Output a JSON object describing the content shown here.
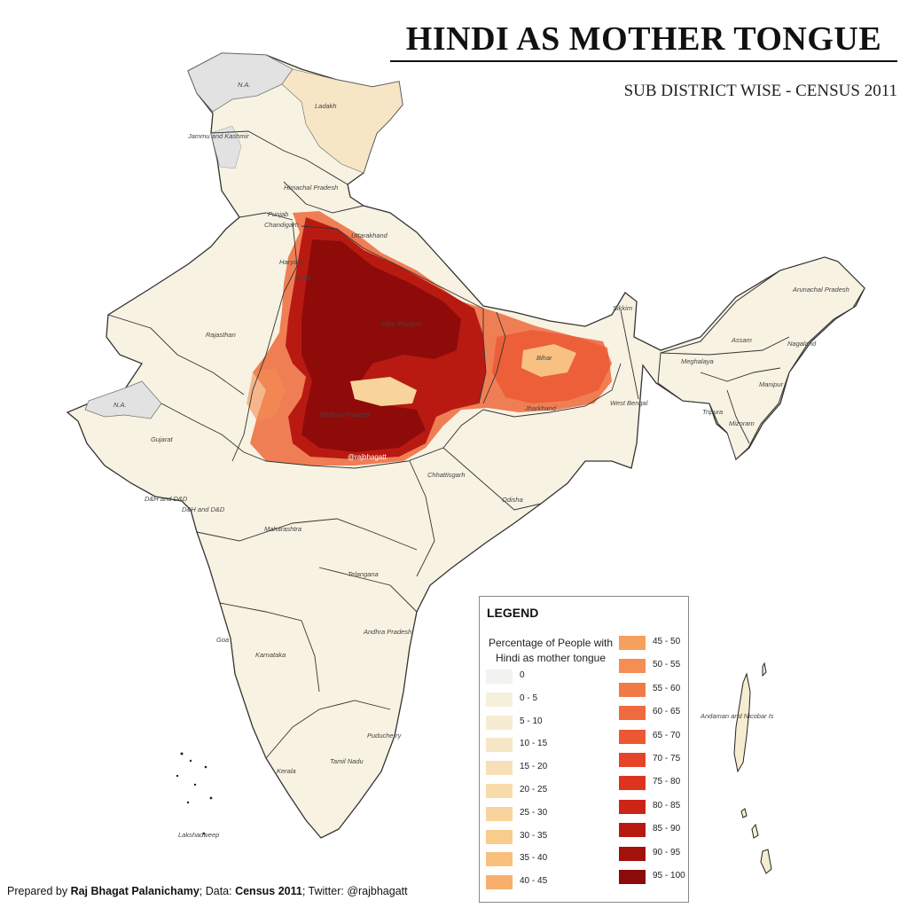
{
  "title": "HINDI AS MOTHER TONGUE",
  "subtitle": "SUB DISTRICT WISE - CENSUS 2011",
  "watermark": "@rajbhagatt",
  "colors": {
    "background": "#ffffff",
    "base_fill": "#f8f2e2",
    "border": "#333333",
    "na_fill": "#e2e2e2",
    "high": "#8b0a0a"
  },
  "map_labels": {
    "na_north": "N.A.",
    "na_west": "N.A.",
    "ladakh": "Ladakh",
    "jammu_kashmir": "Jammu and Kashmir",
    "himachal": "Himachal Pradesh",
    "punjab": "Punjab",
    "chandigarh": "Chandigarh",
    "uttarakhand": "Uttarakhand",
    "haryana": "Haryana",
    "delhi": "Delhi",
    "rajasthan": "Rajasthan",
    "uttar_pradesh": "Uttar Pradesh",
    "madhya_pradesh": "Madhya Pradesh",
    "bihar": "Bihar",
    "sikkim": "Sikkim",
    "arunachal": "Arunachal Pradesh",
    "assam": "Assam",
    "nagaland": "Nagaland",
    "meghalaya": "Meghalaya",
    "manipur": "Manipur",
    "tripura": "Tripura",
    "mizoram": "Mizoram",
    "west_bengal": "West Bengal",
    "jharkhand": "Jharkhand",
    "gujarat": "Gujarat",
    "dh_dd": "D&H and D&D",
    "dh_dd2": "D&H and D&D",
    "chhattisgarh": "Chhattisgarh",
    "odisha": "Odisha",
    "maharashtra": "Maharashtra",
    "telangana": "Telangana",
    "andhra": "Andhra Pradesh",
    "goa": "Goa",
    "karnataka": "Karnataka",
    "puducherry": "Puducherry",
    "tamil_nadu": "Tamil Nadu",
    "kerala": "Kerala",
    "lakshadweep": "Lakshadweep",
    "andaman": "Andaman and Nicobar Is"
  },
  "legend": {
    "title": "LEGEND",
    "subtitle_line1": "Percentage of People with",
    "subtitle_line2": "Hindi as mother tongue",
    "items": [
      {
        "label": "0",
        "color": "#f2f2f0"
      },
      {
        "label": "0 - 5",
        "color": "#f6f0dc"
      },
      {
        "label": "5 - 10",
        "color": "#f6ecd2"
      },
      {
        "label": "10 - 15",
        "color": "#f6e6c6"
      },
      {
        "label": "15 - 20",
        "color": "#f7e0b8"
      },
      {
        "label": "20 - 25",
        "color": "#f8dbaa"
      },
      {
        "label": "25 - 30",
        "color": "#f8d49c"
      },
      {
        "label": "30 - 35",
        "color": "#f8cc8c"
      },
      {
        "label": "35 - 40",
        "color": "#f8c07c"
      },
      {
        "label": "40 - 45",
        "color": "#f7b06c"
      },
      {
        "label": "45 - 50",
        "color": "#f6a05e"
      },
      {
        "label": "50 - 55",
        "color": "#f48e52"
      },
      {
        "label": "55 - 60",
        "color": "#f27a46"
      },
      {
        "label": "60 - 65",
        "color": "#ef6a3c"
      },
      {
        "label": "65 - 70",
        "color": "#ec5832"
      },
      {
        "label": "70 - 75",
        "color": "#e54428"
      },
      {
        "label": "75 - 80",
        "color": "#dc3420"
      },
      {
        "label": "80 - 85",
        "color": "#cc2518"
      },
      {
        "label": "85 - 90",
        "color": "#b81a12"
      },
      {
        "label": "90 - 95",
        "color": "#a3110c"
      },
      {
        "label": "95 - 100",
        "color": "#8b0a0a"
      }
    ]
  },
  "credit": {
    "prefix": "Prepared by ",
    "author": "Raj Bhagat Palanichamy",
    "data_label": "; Data: ",
    "data_source": "Census 2011",
    "twitter_label": "; Twitter: ",
    "twitter": "@rajbhagatt"
  }
}
